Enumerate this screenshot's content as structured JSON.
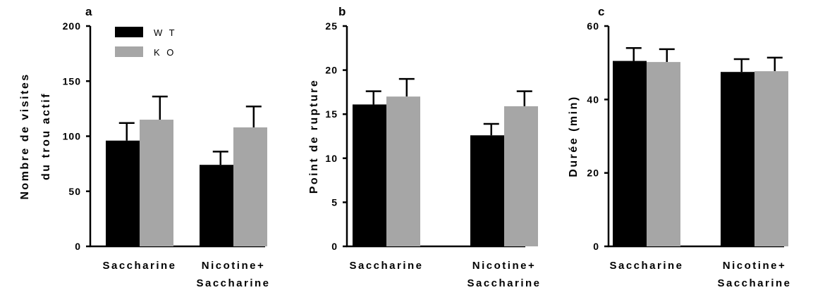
{
  "chart_data": [
    {
      "type": "bar",
      "panel": "a",
      "categories": [
        [
          "Saccharine"
        ],
        [
          "Nicotine+",
          "Saccharine"
        ]
      ],
      "series": [
        {
          "name": "WT",
          "values": [
            96,
            74
          ],
          "errors": [
            16,
            12
          ]
        },
        {
          "name": "KO",
          "values": [
            115,
            108
          ],
          "errors": [
            21,
            19
          ]
        }
      ],
      "ylabel": [
        "Nombre de visites",
        "du trou actif"
      ],
      "ylim": [
        0,
        200
      ],
      "yticks": [
        0,
        50,
        100,
        150,
        200
      ],
      "legend": {
        "entries": [
          "W T",
          "K O"
        ],
        "placement": "top-left"
      },
      "grid": false,
      "colors": [
        "#000000",
        "#a6a6a6"
      ]
    },
    {
      "type": "bar",
      "panel": "b",
      "categories": [
        [
          "Saccharine"
        ],
        [
          "Nicotine+",
          "Saccharine"
        ]
      ],
      "series": [
        {
          "name": "WT",
          "values": [
            16.1,
            12.6
          ],
          "errors": [
            1.5,
            1.3
          ]
        },
        {
          "name": "KO",
          "values": [
            17.0,
            15.9
          ],
          "errors": [
            2.0,
            1.7
          ]
        }
      ],
      "ylabel": [
        "Point de rupture"
      ],
      "ylim": [
        0,
        25
      ],
      "yticks": [
        0,
        5,
        10,
        15,
        20,
        25
      ],
      "grid": false,
      "colors": [
        "#000000",
        "#a6a6a6"
      ]
    },
    {
      "type": "bar",
      "panel": "c",
      "categories": [
        [
          "Saccharine"
        ],
        [
          "Nicotine+",
          "Saccharine"
        ]
      ],
      "series": [
        {
          "name": "WT",
          "values": [
            50.5,
            47.5
          ],
          "errors": [
            3.5,
            3.5
          ]
        },
        {
          "name": "KO",
          "values": [
            50.2,
            47.7
          ],
          "errors": [
            3.5,
            3.7
          ]
        }
      ],
      "ylabel": [
        "Durée (min)"
      ],
      "ylim": [
        0,
        60
      ],
      "yticks": [
        0,
        20,
        40,
        60
      ],
      "grid": false,
      "colors": [
        "#000000",
        "#a6a6a6"
      ]
    }
  ]
}
